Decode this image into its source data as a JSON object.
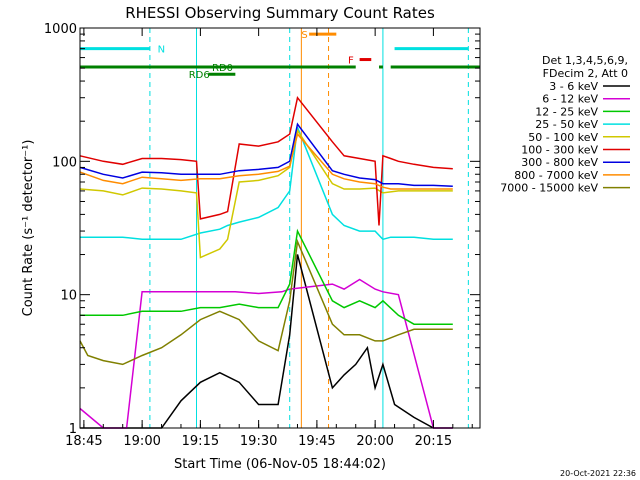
{
  "chart_data": {
    "type": "line",
    "title": "RHESSI Observing Summary Count Rates",
    "xlabel": "Start Time (06-Nov-05 18:44:02)",
    "ylabel": "Count Rate (s⁻¹ detector⁻¹)",
    "y_scale": "log",
    "ylim": [
      1,
      1000
    ],
    "xlim": [
      "18:44",
      "20:27"
    ],
    "x_ticks": [
      "18:45",
      "19:00",
      "19:15",
      "19:30",
      "19:45",
      "20:00",
      "20:15"
    ],
    "y_ticks": [
      "1",
      "10",
      "100",
      "1000"
    ],
    "timestamp": "20-Oct-2021 22:36",
    "legend": {
      "placement": "right",
      "header": [
        "Det 1,3,4,5,6,9,",
        "FDecim 2, Att 0"
      ]
    },
    "grid": false,
    "series": [
      {
        "name": "3 - 6 keV",
        "color": "#000000",
        "x": [
          "18:44",
          "18:50",
          "18:55",
          "19:00",
          "19:05",
          "19:10",
          "19:15",
          "19:20",
          "19:25",
          "19:30",
          "19:35",
          "19:38",
          "19:40",
          "19:49",
          "19:52",
          "19:55",
          "19:58",
          "20:00",
          "20:02",
          "20:05",
          "20:10",
          "20:15",
          "20:20"
        ],
        "values": [
          1,
          1,
          1,
          1,
          1,
          1.6,
          2.2,
          2.6,
          2.2,
          1.5,
          1.5,
          5,
          20,
          2,
          2.5,
          3,
          4,
          2,
          3,
          1.5,
          1.2,
          1,
          1
        ]
      },
      {
        "name": "6 - 12 keV",
        "color": "#d400d4",
        "x": [
          "18:44",
          "18:50",
          "18:56",
          "19:00",
          "19:10",
          "19:20",
          "19:24",
          "19:30",
          "19:36",
          "19:38",
          "19:49",
          "19:52",
          "19:56",
          "20:00",
          "20:02",
          "20:06",
          "20:15",
          "20:20"
        ],
        "values": [
          1.4,
          1,
          1,
          10.5,
          10.5,
          10.5,
          10.5,
          10.2,
          10.5,
          11,
          12,
          11,
          13,
          11,
          10.5,
          10,
          1,
          1
        ]
      },
      {
        "name": "12 - 25 keV",
        "color": "#00c800",
        "x": [
          "18:44",
          "18:50",
          "18:55",
          "19:00",
          "19:05",
          "19:10",
          "19:15",
          "19:20",
          "19:25",
          "19:30",
          "19:35",
          "19:38",
          "19:40",
          "19:49",
          "19:52",
          "19:56",
          "20:00",
          "20:02",
          "20:06",
          "20:10",
          "20:15",
          "20:20"
        ],
        "values": [
          7,
          7,
          7,
          7.5,
          7.5,
          7.5,
          8,
          8,
          8.5,
          8,
          8,
          12,
          30,
          9,
          8,
          9,
          8,
          9,
          7,
          6,
          6,
          6
        ]
      },
      {
        "name": "25 - 50 keV",
        "color": "#00e0e0",
        "x": [
          "18:44",
          "18:50",
          "18:55",
          "19:00",
          "19:05",
          "19:10",
          "19:15",
          "19:20",
          "19:22",
          "19:25",
          "19:30",
          "19:35",
          "19:38",
          "19:40",
          "19:49",
          "19:52",
          "19:56",
          "20:00",
          "20:02",
          "20:04",
          "20:06",
          "20:10",
          "20:15",
          "20:20"
        ],
        "values": [
          27,
          27,
          27,
          26,
          26,
          26,
          29,
          31,
          33,
          35,
          38,
          45,
          60,
          180,
          40,
          33,
          30,
          30,
          26,
          27,
          27,
          27,
          26,
          26
        ]
      },
      {
        "name": "50 - 100 keV",
        "color": "#d0c800",
        "x": [
          "18:44",
          "18:50",
          "18:55",
          "19:00",
          "19:05",
          "19:10",
          "19:14",
          "19:15",
          "19:20",
          "19:22",
          "19:25",
          "19:30",
          "19:35",
          "19:38",
          "19:40",
          "19:49",
          "19:52",
          "19:56",
          "20:00",
          "20:02",
          "20:06",
          "20:10",
          "20:15",
          "20:20"
        ],
        "values": [
          62,
          60,
          56,
          63,
          62,
          60,
          58,
          19,
          22,
          26,
          70,
          72,
          78,
          90,
          170,
          68,
          62,
          62,
          63,
          58,
          60,
          60,
          60,
          60
        ]
      },
      {
        "name": "100 - 300 keV",
        "color": "#e00000",
        "x": [
          "18:44",
          "18:50",
          "18:55",
          "19:00",
          "19:05",
          "19:10",
          "19:14",
          "19:15",
          "19:20",
          "19:22",
          "19:25",
          "19:30",
          "19:35",
          "19:38",
          "19:40",
          "19:49",
          "19:52",
          "19:56",
          "20:00",
          "20:01",
          "20:02",
          "20:04",
          "20:06",
          "20:10",
          "20:15",
          "20:20"
        ],
        "values": [
          110,
          100,
          95,
          105,
          105,
          103,
          100,
          37,
          40,
          42,
          135,
          130,
          140,
          160,
          300,
          140,
          110,
          105,
          100,
          33,
          110,
          105,
          100,
          95,
          90,
          88
        ]
      },
      {
        "name": "300 - 800 keV",
        "color": "#0000e0",
        "x": [
          "18:44",
          "18:50",
          "18:55",
          "19:00",
          "19:05",
          "19:10",
          "19:15",
          "19:20",
          "19:25",
          "19:30",
          "19:35",
          "19:38",
          "19:40",
          "19:49",
          "19:52",
          "19:56",
          "20:00",
          "20:02",
          "20:04",
          "20:06",
          "20:10",
          "20:15",
          "20:20"
        ],
        "values": [
          90,
          80,
          75,
          83,
          82,
          80,
          80,
          80,
          85,
          87,
          90,
          100,
          190,
          85,
          80,
          75,
          73,
          68,
          68,
          68,
          66,
          66,
          65
        ]
      },
      {
        "name": "800 - 7000 keV",
        "color": "#ff8c00",
        "x": [
          "18:44",
          "18:50",
          "18:55",
          "19:00",
          "19:05",
          "19:10",
          "19:15",
          "19:20",
          "19:25",
          "19:30",
          "19:35",
          "19:38",
          "19:40",
          "19:49",
          "19:52",
          "19:56",
          "20:00",
          "20:02",
          "20:04",
          "20:06",
          "20:10",
          "20:15",
          "20:20"
        ],
        "values": [
          83,
          72,
          68,
          76,
          74,
          72,
          74,
          74,
          78,
          80,
          84,
          92,
          160,
          80,
          74,
          70,
          68,
          64,
          62,
          62,
          62,
          62,
          62
        ]
      },
      {
        "name": "7000 - 15000 keV",
        "color": "#808000",
        "x": [
          "18:44",
          "18:46",
          "18:50",
          "18:55",
          "19:00",
          "19:05",
          "19:10",
          "19:15",
          "19:20",
          "19:25",
          "19:30",
          "19:35",
          "19:38",
          "19:40",
          "19:49",
          "19:52",
          "19:56",
          "20:00",
          "20:02",
          "20:06",
          "20:10",
          "20:15",
          "20:20"
        ],
        "values": [
          4.5,
          3.5,
          3.2,
          3.0,
          3.5,
          4.0,
          5.0,
          6.5,
          7.5,
          6.5,
          4.5,
          3.8,
          9,
          25,
          6,
          5,
          5,
          4.5,
          4.5,
          5,
          5.5,
          5.5,
          5.5
        ]
      }
    ],
    "annotations": {
      "vertical_lines": [
        {
          "label": "",
          "time": "18:44",
          "color": "#00e0e0",
          "style": "solid"
        },
        {
          "label": "",
          "time": "19:02",
          "color": "#00e0e0",
          "style": "dashed"
        },
        {
          "label": "",
          "time": "19:14",
          "color": "#00e0e0",
          "style": "solid"
        },
        {
          "label": "",
          "time": "19:38",
          "color": "#00e0e0",
          "style": "dashed"
        },
        {
          "label": "",
          "time": "19:41",
          "color": "#ff8c00",
          "style": "solid"
        },
        {
          "label": "",
          "time": "19:48",
          "color": "#ff8c00",
          "style": "dashed"
        },
        {
          "label": "",
          "time": "20:02",
          "color": "#00e0e0",
          "style": "solid"
        },
        {
          "label": "",
          "time": "20:24",
          "color": "#00e0e0",
          "style": "dashed"
        }
      ],
      "bars": [
        {
          "label": "N",
          "color": "#00e0e0",
          "spans": [
            [
              "18:44",
              "19:02"
            ],
            [
              "20:05",
              "20:24"
            ]
          ],
          "level": 700,
          "label_at": "19:04"
        },
        {
          "label": "S",
          "color": "#ff8c00",
          "spans": [
            [
              "19:43",
              "19:50"
            ]
          ],
          "level": 900,
          "label_at": "19:41"
        },
        {
          "label": "F",
          "color": "#e00000",
          "spans": [
            [
              "19:56",
              "19:59"
            ]
          ],
          "level": 580,
          "label_at": "19:53"
        },
        {
          "label": "RD0",
          "color": "#008000",
          "spans": [
            [
              "18:44",
              "19:55"
            ],
            [
              "20:04",
              "20:27"
            ]
          ],
          "level": 510,
          "label_at": "19:18"
        },
        {
          "label": "",
          "color": "#008000",
          "spans": [
            [
              "20:01",
              "20:02"
            ]
          ],
          "level": 510,
          "label_at": ""
        },
        {
          "label": "RD6",
          "color": "#008000",
          "spans": [
            [
              "19:17",
              "19:24"
            ]
          ],
          "level": 450,
          "label_at": "19:12"
        }
      ]
    }
  }
}
